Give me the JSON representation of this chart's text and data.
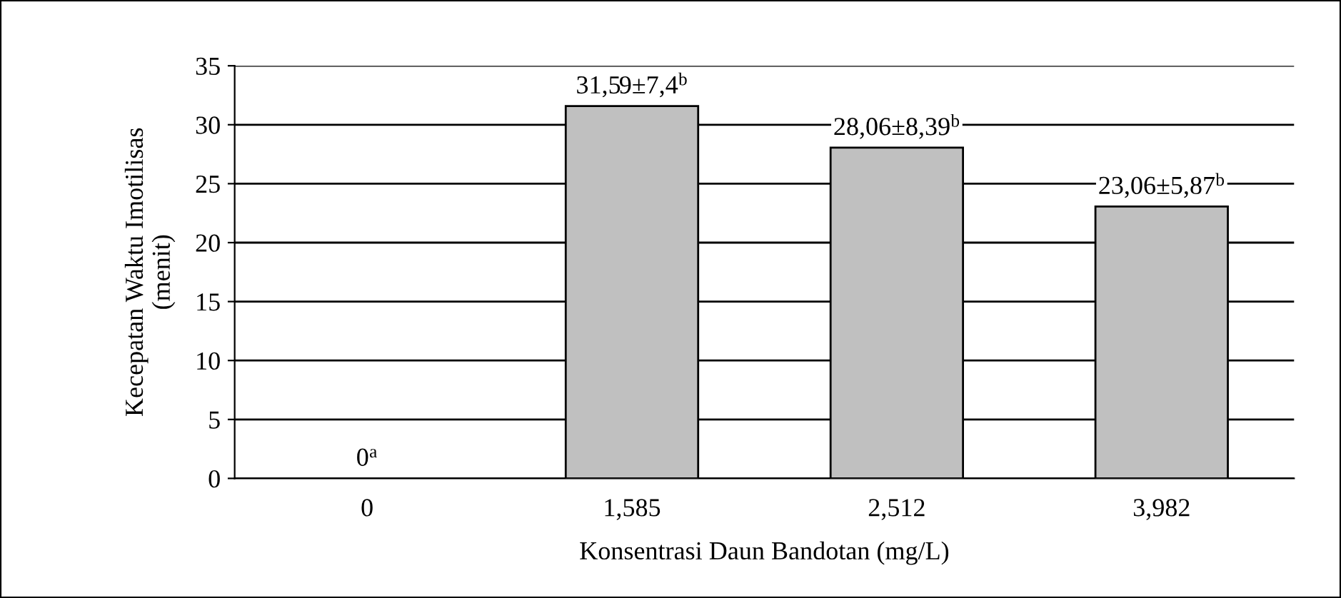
{
  "chart_data": {
    "type": "bar",
    "xlabel": "Konsentrasi Daun Bandotan (mg/L)",
    "ylabel": "Kecepatan Waktu Imotilisas\n(menit)",
    "categories": [
      "0",
      "1,585",
      "2,512",
      "3,982"
    ],
    "values": [
      0,
      31.59,
      28.06,
      23.06
    ],
    "value_labels": [
      "0$^{a}$",
      "31,59±7,4$^{b}$",
      "28,06±8,39$^{b}$",
      "23,06±5,87$^{b}$"
    ],
    "color": "#c0c0c0",
    "ylim": [
      0,
      35
    ],
    "yticks": [
      0,
      5,
      10,
      15,
      20,
      25,
      30,
      35
    ],
    "grid": "y"
  }
}
